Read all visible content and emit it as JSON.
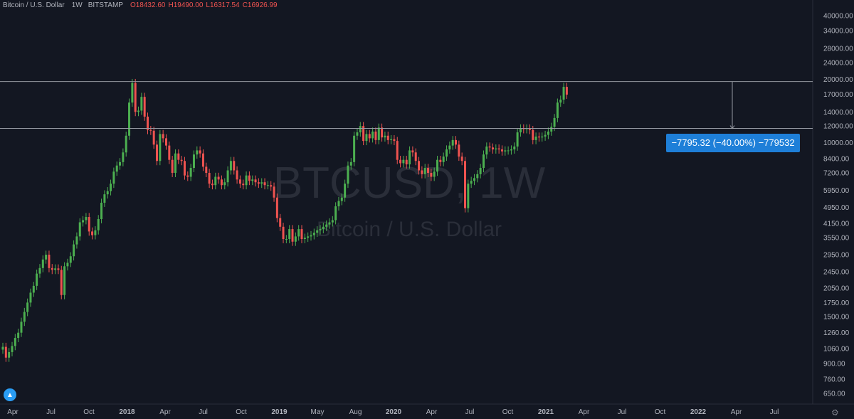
{
  "header": {
    "symbol": "Bitcoin / U.S. Dollar",
    "interval": "1W",
    "exchange": "BITSTAMP",
    "open": "O18432.60",
    "high": "H19490.00",
    "low": "L16317.54",
    "close": "C16926.99"
  },
  "watermark": {
    "ticker": "BTCUSD, 1W",
    "name": "Bitcoin / U.S. Dollar"
  },
  "measure": {
    "label": "−7795.32 (−40.00%) −779532",
    "from_price": 19490,
    "to_price": 11695
  },
  "colors": {
    "background": "#131722",
    "up": "#26a69a",
    "up_candle": "#4caf50",
    "down": "#ef5350",
    "axis_text": "#b2b5be",
    "measure_bg": "#1e7fd8",
    "hline": "#787b86"
  },
  "icons": {
    "logo": "tradingview-logo-icon",
    "settings": "gear-icon"
  },
  "chart_data": {
    "type": "candlestick",
    "title": "Bitcoin / U.S. Dollar",
    "y_scale": "log",
    "y_ticks": [
      "40000.00",
      "34000.00",
      "28000.00",
      "24000.00",
      "20000.00",
      "17000.00",
      "14000.00",
      "12000.00",
      "10000.00",
      "8400.00",
      "7200.00",
      "5950.00",
      "4950.00",
      "4150.00",
      "3550.00",
      "2950.00",
      "2450.00",
      "2050.00",
      "1750.00",
      "1500.00",
      "1260.00",
      "1060.00",
      "900.00",
      "760.00",
      "650.00"
    ],
    "x_ticks": [
      "Apr",
      "Jul",
      "Oct",
      "2018",
      "Apr",
      "Jul",
      "Oct",
      "2019",
      "May",
      "Aug",
      "2020",
      "Apr",
      "Jul",
      "Oct",
      "2021",
      "Apr",
      "Jul",
      "Oct",
      "2022",
      "Apr",
      "Jul"
    ],
    "horizontal_lines": [
      19490,
      11695
    ],
    "series_weekly_close": [
      1080,
      960,
      1020,
      1090,
      1190,
      1260,
      1420,
      1580,
      1750,
      1950,
      2100,
      2400,
      2550,
      2800,
      2950,
      2550,
      2500,
      2540,
      2500,
      1900,
      2600,
      2700,
      2900,
      3300,
      3600,
      4200,
      4300,
      4450,
      3800,
      3650,
      3850,
      4350,
      5200,
      5700,
      5900,
      6400,
      7300,
      7800,
      8100,
      9000,
      10800,
      15500,
      19200,
      14000,
      14200,
      16500,
      13300,
      11500,
      11400,
      9800,
      8200,
      11000,
      10500,
      9700,
      8300,
      7200,
      8900,
      8300,
      8200,
      7000,
      6900,
      7600,
      8800,
      9200,
      8900,
      7700,
      7200,
      6400,
      6300,
      6900,
      6700,
      6300,
      6500,
      7400,
      8200,
      7400,
      6700,
      6400,
      6300,
      7000,
      6600,
      6700,
      6500,
      6400,
      6500,
      6300,
      6300,
      6200,
      5500,
      4400,
      4000,
      3500,
      3500,
      3900,
      3400,
      3600,
      3900,
      3500,
      3550,
      3600,
      3650,
      3750,
      3850,
      3900,
      4000,
      4100,
      4200,
      4300,
      5000,
      5300,
      5500,
      6400,
      7800,
      8100,
      10800,
      11200,
      12000,
      10200,
      11000,
      10500,
      11300,
      10300,
      11800,
      10600,
      10800,
      10300,
      10400,
      10200,
      8300,
      8000,
      8300,
      7900,
      9200,
      9000,
      8200,
      7400,
      7100,
      7600,
      7200,
      6900,
      7300,
      8300,
      8100,
      8600,
      9300,
      9700,
      10300,
      9800,
      8600,
      8200,
      4900,
      6400,
      6600,
      6800,
      7100,
      7600,
      8800,
      9600,
      9500,
      9300,
      9400,
      9300,
      9100,
      9200,
      9200,
      9300,
      9600,
      11200,
      11700,
      11600,
      11700,
      11500,
      10300,
      10700,
      10600,
      10700,
      10900,
      11300,
      11900,
      13100,
      15500,
      16000,
      18400,
      16900
    ]
  }
}
